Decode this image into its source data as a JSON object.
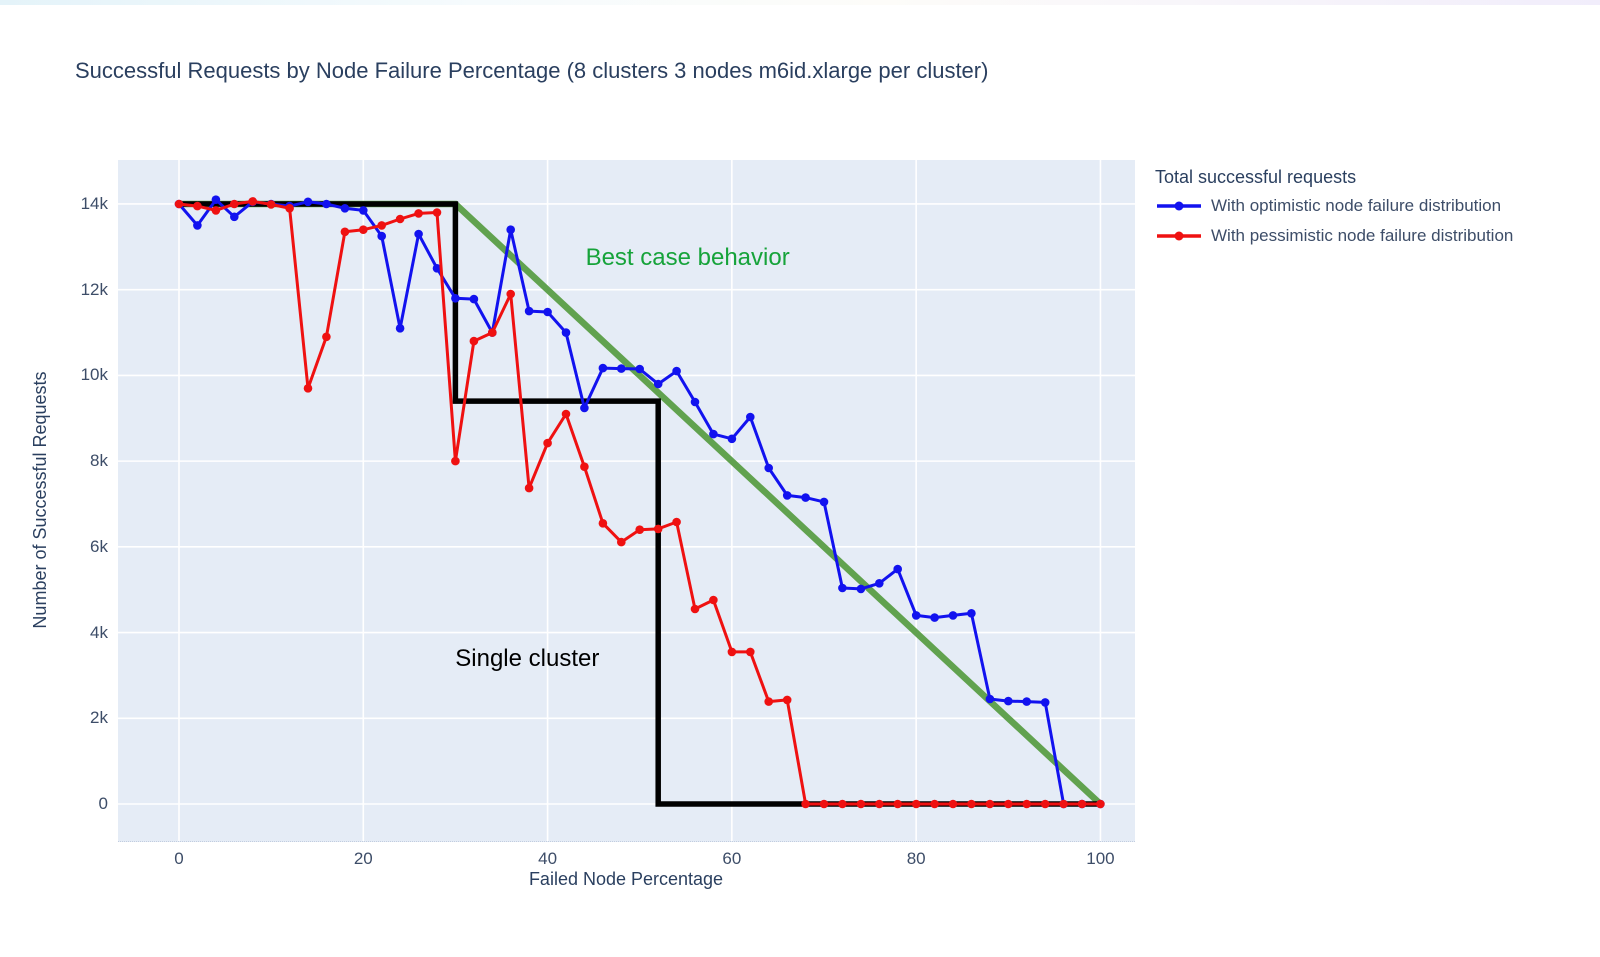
{
  "page": {
    "background": "#ffffff",
    "top_strip_colors": [
      "#e4f3f9",
      "#f1edfb"
    ]
  },
  "title": {
    "text": "Successful Requests by Node Failure Percentage (8 clusters 3 nodes m6id.xlarge per cluster)"
  },
  "legend": {
    "title": "Total successful requests",
    "items": [
      {
        "label": "With optimistic node failure distribution",
        "color": "#1212ef"
      },
      {
        "label": "With pessimistic node failure distribution",
        "color": "#ef1111"
      }
    ]
  },
  "chart_data": {
    "type": "line",
    "title": "Successful Requests by Node Failure Percentage (8 clusters 3 nodes m6id.xlarge per cluster)",
    "xlabel": "Failed Node Percentage",
    "ylabel": "Number of Successful Requests",
    "xlim": [
      -6.62,
      103.75
    ],
    "ylim": [
      -863,
      15026
    ],
    "grid": true,
    "grid_color": "#ffffff",
    "plot_bg": "#e5ecf6",
    "legend_position": "right-top",
    "x_ticks": [
      {
        "v": 0,
        "label": "0"
      },
      {
        "v": 20,
        "label": "20"
      },
      {
        "v": 40,
        "label": "40"
      },
      {
        "v": 60,
        "label": "60"
      },
      {
        "v": 80,
        "label": "80"
      },
      {
        "v": 100,
        "label": "100"
      }
    ],
    "y_ticks": [
      {
        "v": 0,
        "label": "0"
      },
      {
        "v": 2000,
        "label": "2k"
      },
      {
        "v": 4000,
        "label": "4k"
      },
      {
        "v": 6000,
        "label": "6k"
      },
      {
        "v": 8000,
        "label": "8k"
      },
      {
        "v": 10000,
        "label": "10k"
      },
      {
        "v": 12000,
        "label": "12k"
      },
      {
        "v": 14000,
        "label": "14k"
      }
    ],
    "overlays": [
      {
        "name": "best-case-line",
        "label": "Best case behavior",
        "color": "#61a24f",
        "width": 6.5,
        "points": [
          [
            0,
            14000
          ],
          [
            30,
            14000
          ],
          [
            100,
            0
          ]
        ]
      },
      {
        "name": "single-cluster-line",
        "label": "Single cluster",
        "color": "#000000",
        "width": 5.5,
        "points": [
          [
            0,
            14000
          ],
          [
            30,
            14000
          ],
          [
            30,
            9400
          ],
          [
            52,
            9400
          ],
          [
            52,
            0
          ],
          [
            100,
            0
          ]
        ]
      }
    ],
    "series": [
      {
        "name": "series-optimistic",
        "label": "With optimistic node failure distribution",
        "color": "#1212ef",
        "line_width": 3,
        "markers": true,
        "marker_size": 4.3,
        "x": [
          0,
          2,
          4,
          6,
          8,
          10,
          12,
          14,
          16,
          18,
          20,
          22,
          24,
          26,
          28,
          30,
          32,
          34,
          36,
          38,
          40,
          42,
          44,
          46,
          48,
          50,
          52,
          54,
          56,
          58,
          60,
          62,
          64,
          66,
          68,
          70,
          72,
          74,
          76,
          78,
          80,
          82,
          84,
          86,
          88,
          90,
          92,
          94,
          96,
          98,
          100
        ],
        "values": [
          14000,
          13500,
          14100,
          13700,
          14050,
          14000,
          13950,
          14050,
          14000,
          13900,
          13850,
          13250,
          11100,
          13300,
          12500,
          11800,
          11780,
          11000,
          13400,
          11500,
          11480,
          11000,
          9240,
          10170,
          10160,
          10150,
          9800,
          10100,
          9380,
          8630,
          8520,
          9030,
          7840,
          7200,
          7150,
          7050,
          5040,
          5020,
          5150,
          5480,
          4400,
          4350,
          4400,
          4450,
          2450,
          2400,
          2390,
          2370,
          0,
          0,
          0
        ]
      },
      {
        "name": "series-pessimistic",
        "label": "With pessimistic node failure distribution",
        "color": "#ef1111",
        "line_width": 3,
        "markers": true,
        "marker_size": 4.3,
        "x": [
          0,
          2,
          4,
          6,
          8,
          10,
          12,
          14,
          16,
          18,
          20,
          22,
          24,
          26,
          28,
          30,
          32,
          34,
          36,
          38,
          40,
          42,
          44,
          46,
          48,
          50,
          52,
          54,
          56,
          58,
          60,
          62,
          64,
          66,
          68,
          70,
          72,
          74,
          76,
          78,
          80,
          82,
          84,
          86,
          88,
          90,
          92,
          94,
          96,
          98,
          100
        ],
        "values": [
          14000,
          13950,
          13850,
          14000,
          14060,
          13990,
          13900,
          9700,
          10900,
          13350,
          13400,
          13500,
          13650,
          13780,
          13800,
          8000,
          10800,
          11000,
          11900,
          7370,
          8420,
          9100,
          7870,
          6550,
          6110,
          6400,
          6420,
          6580,
          4550,
          4760,
          3550,
          3550,
          2390,
          2430,
          0,
          0,
          0,
          0,
          0,
          0,
          0,
          0,
          0,
          0,
          0,
          0,
          0,
          0,
          0,
          0,
          0
        ]
      }
    ],
    "annotations": [
      {
        "text": "Best case behavior",
        "color": "#16a33a",
        "x": 55.2,
        "y": 12740,
        "size": 24
      },
      {
        "text": "Single cluster",
        "color": "#000000",
        "x": 37.8,
        "y": 3380,
        "size": 24
      }
    ]
  }
}
